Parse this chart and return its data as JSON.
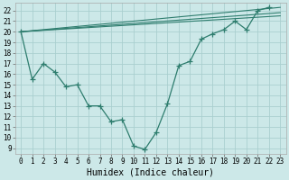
{
  "xlabel": "Humidex (Indice chaleur)",
  "bg_color": "#cce8e8",
  "grid_color": "#aacfcf",
  "line_color": "#2e7d6e",
  "xlim": [
    -0.5,
    23.5
  ],
  "ylim": [
    8.5,
    22.7
  ],
  "yticks": [
    9,
    10,
    11,
    12,
    13,
    14,
    15,
    16,
    17,
    18,
    19,
    20,
    21,
    22
  ],
  "xticks": [
    0,
    1,
    2,
    3,
    4,
    5,
    6,
    7,
    8,
    9,
    10,
    11,
    12,
    13,
    14,
    15,
    16,
    17,
    18,
    19,
    20,
    21,
    22,
    23
  ],
  "main_line": {
    "x": [
      0,
      1,
      2,
      3,
      4,
      5,
      6,
      7,
      8,
      9,
      10,
      11,
      12,
      13,
      14,
      15,
      16,
      17,
      18,
      19,
      20,
      21,
      22
    ],
    "y": [
      20.0,
      15.5,
      17.0,
      16.2,
      14.8,
      15.0,
      13.0,
      13.0,
      11.5,
      11.7,
      9.2,
      8.9,
      10.5,
      13.2,
      16.8,
      17.2,
      19.3,
      19.8,
      20.2,
      21.0,
      20.2,
      22.0,
      22.3
    ]
  },
  "diag_lines": [
    {
      "x": [
        0,
        23
      ],
      "y": [
        20.0,
        22.3
      ]
    },
    {
      "x": [
        0,
        23
      ],
      "y": [
        20.0,
        21.8
      ]
    },
    {
      "x": [
        0,
        23
      ],
      "y": [
        20.0,
        21.5
      ]
    }
  ],
  "xlabel_fontsize": 7,
  "tick_fontsize": 5.5
}
